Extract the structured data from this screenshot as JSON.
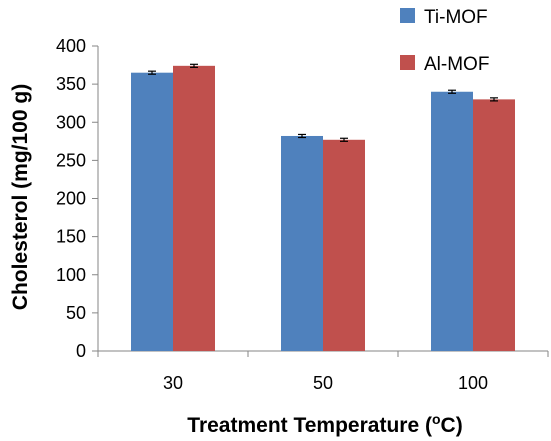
{
  "chart_data": {
    "type": "bar",
    "categories": [
      "30",
      "50",
      "100"
    ],
    "series": [
      {
        "name": "Ti-MOF",
        "color": "#4F81BD",
        "values": [
          365,
          282,
          340
        ],
        "errors": [
          2,
          2,
          2
        ]
      },
      {
        "name": "Al-MOF",
        "color": "#C0504D",
        "values": [
          374,
          277,
          330
        ],
        "errors": [
          2,
          2,
          2
        ]
      }
    ],
    "xlabel": {
      "main": "Treatment Temperature (",
      "sup": "o",
      "end": "C)"
    },
    "ylabel": "Cholesterol (mg/100 g)",
    "ylim": [
      0,
      400
    ],
    "yticks": [
      "0",
      "50",
      "100",
      "150",
      "200",
      "250",
      "300",
      "350",
      "400"
    ],
    "grid": false,
    "legend_position": "top-right"
  }
}
